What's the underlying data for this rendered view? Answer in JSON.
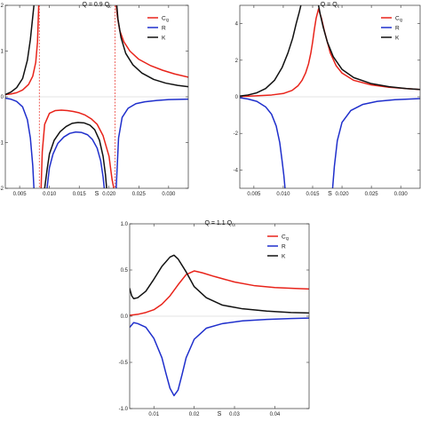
{
  "chart_data": [
    {
      "type": "line",
      "title": "Q = 0.9 Q_c",
      "title_main": "Q = 0.9 ",
      "title_sub": "Q",
      "title_subscript": "c",
      "xlabel": "S",
      "ylabel": "",
      "xlim": [
        0.0026,
        0.0333
      ],
      "ylim": [
        -2,
        2
      ],
      "xticks": [
        0.005,
        0.01,
        0.015,
        0.02,
        0.025,
        0.03
      ],
      "xtick_labels": [
        "0.005",
        "0.010",
        "0.015",
        "0.020",
        "0.025",
        "0.030"
      ],
      "yticks": [
        -2,
        -1,
        0,
        1,
        2
      ],
      "ytick_labels": [
        "-2",
        "-1",
        "0",
        "1",
        "2"
      ],
      "asymptotes": [
        0.0083,
        0.021
      ],
      "legend_position": "top-right",
      "series": [
        {
          "name": "C_Q",
          "color": "#e8231a",
          "x": [
            [
              0.0026,
              0.0035,
              0.0045,
              0.0055,
              0.0065,
              0.0072,
              0.0077,
              0.008,
              0.0082
            ],
            [
              0.0086,
              0.0088,
              0.0092,
              0.01,
              0.011,
              0.012,
              0.013,
              0.014,
              0.015,
              0.016,
              0.017,
              0.018,
              0.019,
              0.02,
              0.0205,
              0.0208
            ],
            [
              0.0212,
              0.0214,
              0.0218,
              0.0225,
              0.0235,
              0.025,
              0.027,
              0.029,
              0.031,
              0.0333
            ]
          ],
          "y": [
            [
              0.05,
              0.06,
              0.09,
              0.15,
              0.27,
              0.45,
              0.75,
              1.2,
              2.0
            ],
            [
              -2.0,
              -1.2,
              -0.6,
              -0.36,
              -0.3,
              -0.29,
              -0.3,
              -0.32,
              -0.35,
              -0.4,
              -0.48,
              -0.6,
              -0.85,
              -1.3,
              -1.8,
              -2.0
            ],
            [
              2.0,
              1.75,
              1.45,
              1.2,
              1.0,
              0.82,
              0.68,
              0.58,
              0.5,
              0.43
            ]
          ]
        },
        {
          "name": "R",
          "color": "#1f2fcc",
          "x": [
            [
              0.0026,
              0.0035,
              0.0045,
              0.0055,
              0.0063,
              0.0068,
              0.0072,
              0.0074
            ],
            [
              0.0096,
              0.01,
              0.0106,
              0.0114,
              0.0124,
              0.0134,
              0.0144,
              0.0154,
              0.0164,
              0.0172,
              0.018,
              0.0186,
              0.019,
              0.0192
            ],
            [
              0.0212,
              0.0216,
              0.0222,
              0.0232,
              0.0245,
              0.026,
              0.028,
              0.03,
              0.0333
            ]
          ],
          "y": [
            [
              -0.03,
              -0.05,
              -0.1,
              -0.22,
              -0.5,
              -0.9,
              -1.5,
              -2.0
            ],
            [
              -2.0,
              -1.55,
              -1.25,
              -1.02,
              -0.88,
              -0.8,
              -0.77,
              -0.78,
              -0.83,
              -0.93,
              -1.12,
              -1.4,
              -1.75,
              -2.0
            ],
            [
              -2.0,
              -0.9,
              -0.45,
              -0.25,
              -0.15,
              -0.11,
              -0.08,
              -0.06,
              -0.05
            ]
          ]
        },
        {
          "name": "K",
          "color": "#111111",
          "x": [
            [
              0.0026,
              0.0035,
              0.0045,
              0.0055,
              0.0063,
              0.0068,
              0.0072,
              0.0074
            ],
            [
              0.0092,
              0.0096,
              0.01,
              0.0108,
              0.0118,
              0.0128,
              0.0138,
              0.0148,
              0.0158,
              0.0168,
              0.0176,
              0.0184,
              0.019,
              0.0194,
              0.0196
            ],
            [
              0.0213,
              0.0215,
              0.022,
              0.0228,
              0.024,
              0.0255,
              0.0275,
              0.0295,
              0.0315,
              0.0333
            ]
          ],
          "y": [
            [
              0.05,
              0.1,
              0.2,
              0.4,
              0.8,
              1.25,
              1.75,
              2.0
            ],
            [
              -2.0,
              -1.6,
              -1.25,
              -0.95,
              -0.76,
              -0.65,
              -0.58,
              -0.56,
              -0.57,
              -0.62,
              -0.72,
              -0.95,
              -1.3,
              -1.7,
              -2.0
            ],
            [
              2.0,
              1.7,
              1.3,
              0.95,
              0.7,
              0.52,
              0.38,
              0.3,
              0.25,
              0.22
            ]
          ]
        }
      ]
    },
    {
      "type": "line",
      "title": "Q = Q_c",
      "title_main": "Q = ",
      "title_sub": "Q",
      "title_subscript": "c",
      "xlabel": "S",
      "ylabel": "",
      "xlim": [
        0.0026,
        0.0333
      ],
      "ylim": [
        -5,
        5
      ],
      "xticks": [
        0.005,
        0.01,
        0.015,
        0.02,
        0.025,
        0.03
      ],
      "xtick_labels": [
        "0.005",
        "0.010",
        "0.015",
        "0.020",
        "0.025",
        "0.030"
      ],
      "yticks": [
        -4,
        -2,
        0,
        2,
        4
      ],
      "ytick_labels": [
        "-4",
        "-2",
        "0",
        "2",
        "4"
      ],
      "legend_position": "top-right",
      "series": [
        {
          "name": "C_Q",
          "color": "#e8231a",
          "x": [
            [
              0.0026,
              0.005,
              0.008,
              0.01,
              0.0115,
              0.0125,
              0.0132,
              0.0138,
              0.0143,
              0.0147,
              0.015,
              0.0153,
              0.0156,
              0.016,
              0.0165,
              0.017,
              0.018,
              0.019,
              0.02,
              0.022,
              0.025,
              0.028,
              0.031,
              0.0333
            ]
          ],
          "y": [
            [
              0.02,
              0.05,
              0.1,
              0.18,
              0.35,
              0.6,
              0.9,
              1.3,
              1.8,
              2.4,
              3.0,
              3.7,
              4.3,
              4.8,
              4.3,
              3.6,
              2.4,
              1.7,
              1.3,
              0.9,
              0.65,
              0.52,
              0.45,
              0.4
            ]
          ]
        },
        {
          "name": "R",
          "color": "#1f2fcc",
          "x": [
            [
              0.0026,
              0.004,
              0.0055,
              0.007,
              0.008,
              0.0088,
              0.0094,
              0.0098,
              0.0101,
              0.0103
            ]
          ],
          "y": [
            [
              -0.05,
              -0.12,
              -0.25,
              -0.55,
              -0.95,
              -1.6,
              -2.5,
              -3.5,
              -4.3,
              -5.0
            ]
          ]
        },
        {
          "name": "R",
          "color": "#1f2fcc",
          "x": [
            [
              0.0184,
              0.0187,
              0.0192,
              0.02,
              0.0215,
              0.0235,
              0.026,
              0.029,
              0.0333
            ]
          ],
          "y": [
            [
              -5.0,
              -3.8,
              -2.4,
              -1.4,
              -0.75,
              -0.42,
              -0.25,
              -0.16,
              -0.1
            ]
          ]
        },
        {
          "name": "K",
          "color": "#111111",
          "x": [
            [
              0.0026,
              0.004,
              0.0055,
              0.007,
              0.0085,
              0.0098,
              0.0108,
              0.0116,
              0.0122,
              0.0127,
              0.013
            ]
          ],
          "y": [
            [
              0.04,
              0.1,
              0.22,
              0.45,
              0.9,
              1.6,
              2.4,
              3.2,
              4.0,
              4.6,
              5.0
            ]
          ]
        },
        {
          "name": "K",
          "color": "#111111",
          "x": [
            [
              0.016,
              0.0163,
              0.0168,
              0.0175,
              0.0185,
              0.02,
              0.022,
              0.025,
              0.028,
              0.031,
              0.0333
            ]
          ],
          "y": [
            [
              5.0,
              4.5,
              3.8,
              3.0,
              2.2,
              1.5,
              1.05,
              0.72,
              0.55,
              0.45,
              0.4
            ]
          ]
        }
      ]
    },
    {
      "type": "line",
      "title": "Q = 1.1 Q_c",
      "title_main": "Q = 1.1  ",
      "title_sub": "Q",
      "title_subscript": "c",
      "xlabel": "S",
      "ylabel": "",
      "xlim": [
        0.004,
        0.0485
      ],
      "ylim": [
        -1.0,
        1.0
      ],
      "xticks": [
        0.01,
        0.02,
        0.03,
        0.04
      ],
      "xtick_labels": [
        "0.01",
        "0.02",
        "0.03",
        "0.04"
      ],
      "yticks": [
        -1.0,
        -0.5,
        0.0,
        0.5,
        1.0
      ],
      "ytick_labels": [
        "-1.0",
        "-0.5",
        "0.0",
        "0.5",
        "1.0"
      ],
      "legend_position": "top-right",
      "series": [
        {
          "name": "C_Q",
          "color": "#e8231a",
          "x": [
            [
              0.004,
              0.006,
              0.008,
              0.01,
              0.012,
              0.014,
              0.016,
              0.018,
              0.02,
              0.022,
              0.025,
              0.03,
              0.035,
              0.04,
              0.045,
              0.0485
            ]
          ],
          "y": [
            [
              0.01,
              0.02,
              0.04,
              0.07,
              0.13,
              0.22,
              0.34,
              0.45,
              0.49,
              0.47,
              0.43,
              0.37,
              0.33,
              0.31,
              0.3,
              0.295
            ]
          ]
        },
        {
          "name": "R",
          "color": "#1f2fcc",
          "x": [
            [
              0.004,
              0.005,
              0.006,
              0.008,
              0.01,
              0.012,
              0.013,
              0.014,
              0.015,
              0.016,
              0.017,
              0.018,
              0.02,
              0.023,
              0.027,
              0.032,
              0.038,
              0.044,
              0.0485
            ]
          ],
          "y": [
            [
              -0.12,
              -0.07,
              -0.08,
              -0.12,
              -0.24,
              -0.45,
              -0.62,
              -0.78,
              -0.86,
              -0.8,
              -0.63,
              -0.45,
              -0.25,
              -0.13,
              -0.08,
              -0.05,
              -0.035,
              -0.025,
              -0.02
            ]
          ]
        },
        {
          "name": "K",
          "color": "#111111",
          "x": [
            [
              0.004,
              0.0045,
              0.005,
              0.006,
              0.008,
              0.01,
              0.012,
              0.014,
              0.015,
              0.016,
              0.018,
              0.02,
              0.023,
              0.027,
              0.032,
              0.038,
              0.044,
              0.0485
            ]
          ],
          "y": [
            [
              0.3,
              0.22,
              0.19,
              0.2,
              0.27,
              0.4,
              0.54,
              0.64,
              0.66,
              0.62,
              0.48,
              0.32,
              0.2,
              0.12,
              0.08,
              0.055,
              0.04,
              0.035
            ]
          ]
        }
      ]
    }
  ],
  "legend_labels": {
    "cq": "C",
    "cq_sub": "Q",
    "r": "R",
    "k": "K"
  }
}
